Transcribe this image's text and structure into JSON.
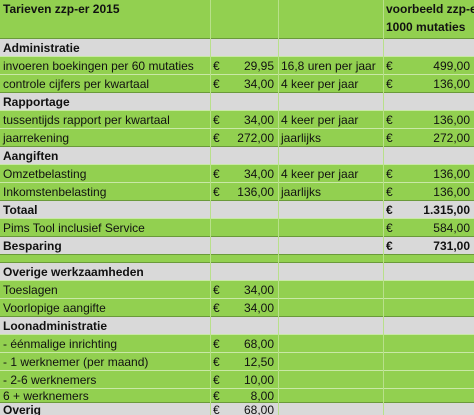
{
  "header": {
    "title": "Tarieven zzp-er 2015",
    "col_example_line1": "voorbeeld zzp-er",
    "col_example_line2": "1000 mutaties"
  },
  "currency_symbol": "€",
  "sections": {
    "administratie": "Administratie",
    "rapportage": "Rapportage",
    "aangiften": "Aangiften",
    "overige": "Overige werkzaamheden",
    "loonadministratie": "Loonadministratie"
  },
  "rows": {
    "invoeren": {
      "label": "invoeren boekingen per 60 mutaties",
      "price": "29,95",
      "freq": "16,8 uren per jaar",
      "total": "499,00"
    },
    "controle": {
      "label": "controle cijfers per kwartaal",
      "price": "34,00",
      "freq": "4 keer per jaar",
      "total": "136,00"
    },
    "tussentijds": {
      "label": "tussentijds rapport per kwartaal",
      "price": "34,00",
      "freq": "4 keer per jaar",
      "total": "136,00"
    },
    "jaarrekening": {
      "label": "jaarrekening",
      "price": "272,00",
      "freq": "jaarlijks",
      "total": "272,00"
    },
    "omzet": {
      "label": "Omzetbelasting",
      "price": "34,00",
      "freq": "4 keer per jaar",
      "total": "136,00"
    },
    "inkomsten": {
      "label": "Inkomstenbelasting",
      "price": "136,00",
      "freq": "jaarlijks",
      "total": "136,00"
    },
    "totaal": {
      "label": "Totaal",
      "total": "1.315,00"
    },
    "pims": {
      "label": "Pims Tool inclusief Service",
      "total": "584,00"
    },
    "besparing": {
      "label": "Besparing",
      "total": "731,00"
    },
    "toeslagen": {
      "label": "Toeslagen",
      "price": "34,00"
    },
    "voorlopige": {
      "label": "Voorlopige aangifte",
      "price": "34,00"
    },
    "eenmalig": {
      "label": "- éénmalige inrichting",
      "price": "68,00"
    },
    "w1": {
      "label": "- 1 werknemer (per maand)",
      "price": "12,50"
    },
    "w26": {
      "label": "- 2-6 werknemers",
      "price": "10,00"
    },
    "w6p": {
      "label": "6 + werknemers",
      "price": "8,00"
    },
    "overig": {
      "label": "Overig",
      "price": "68,00"
    }
  },
  "colors": {
    "green": "#92d050",
    "grey": "#d9d9d9"
  }
}
